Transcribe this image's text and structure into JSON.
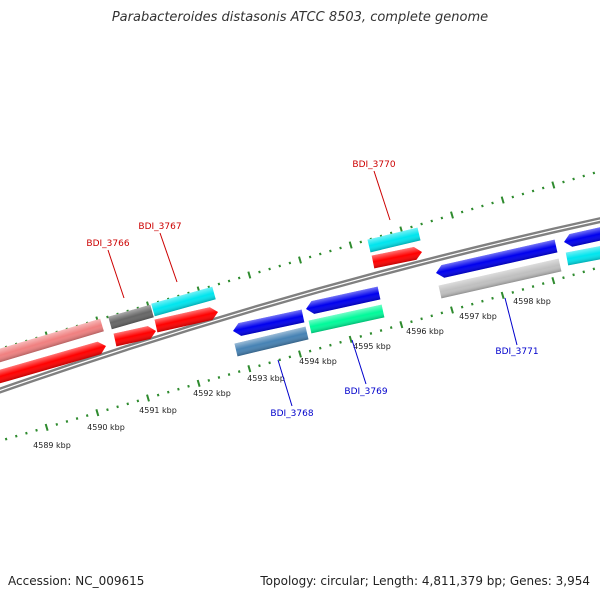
{
  "title": "Parabacteroides distasonis ATCC 8503, complete genome",
  "footer": {
    "accession": "Accession: NC_009615",
    "stats": "Topology: circular; Length: 4,811,379 bp; Genes: 3,954"
  },
  "scale_labels": [
    "4589 kbp",
    "4590 kbp",
    "4591 kbp",
    "4592 kbp",
    "4593 kbp",
    "4594 kbp",
    "4595 kbp",
    "4596 kbp",
    "4597 kbp",
    "4598 kbp"
  ],
  "gene_labels": [
    {
      "text": "BDI_3766",
      "color": "#cc0000"
    },
    {
      "text": "BDI_3767",
      "color": "#cc0000"
    },
    {
      "text": "BDI_3770",
      "color": "#cc0000"
    },
    {
      "text": "BDI_3768",
      "color": "#0000cc"
    },
    {
      "text": "BDI_3769",
      "color": "#0000cc"
    },
    {
      "text": "BDI_3771",
      "color": "#0000cc"
    }
  ],
  "colors": {
    "backbone": "#808080",
    "ticks": "#2e8b2e",
    "red": "#ff0000",
    "pink": "#f08080",
    "cyan": "#00e5ee",
    "dark_gray": "#666666",
    "blue": "#0000ee",
    "steel_blue": "#4682b4",
    "sea_green": "#00fa9a",
    "light_gray": "#c0c0c0"
  }
}
